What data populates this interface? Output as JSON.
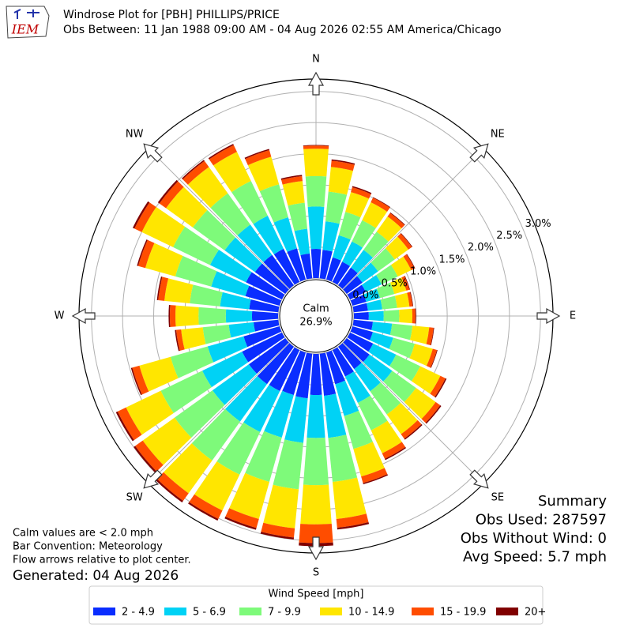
{
  "chart_data": {
    "type": "windrose",
    "logo_text": "IEM",
    "title": "Windrose Plot for [PBH] PHILLIPS/PRICE",
    "subtitle": "Obs Between: 11 Jan 1988 09:00 AM - 04 Aug 2026 02:55 AM America/Chicago",
    "calm_label": "Calm",
    "calm_value_label": "26.9%",
    "x": [
      10,
      20,
      30,
      40,
      50,
      60,
      70,
      80,
      90,
      100,
      110,
      120,
      130,
      140,
      150,
      160,
      170,
      180,
      190,
      200,
      210,
      220,
      230,
      240,
      250,
      260,
      270,
      280,
      290,
      300,
      310,
      320,
      330,
      340,
      350,
      360
    ],
    "xlim": [
      0,
      360
    ],
    "xticks": [
      {
        "value": 0,
        "label": "N"
      },
      {
        "value": 45,
        "label": "NE"
      },
      {
        "value": 90,
        "label": "E"
      },
      {
        "value": 135,
        "label": "SE"
      },
      {
        "value": 180,
        "label": "S"
      },
      {
        "value": 225,
        "label": "SW"
      },
      {
        "value": 270,
        "label": "W"
      },
      {
        "value": 315,
        "label": "NW"
      }
    ],
    "ylim": [
      0,
      3.2
    ],
    "yticks": [
      {
        "value": 0,
        "label": "0.0%"
      },
      {
        "value": 0.5,
        "label": "0.5%"
      },
      {
        "value": 1,
        "label": "1.0%"
      },
      {
        "value": 1.5,
        "label": "1.5%"
      },
      {
        "value": 2,
        "label": "2.0%"
      },
      {
        "value": 2.5,
        "label": "2.5%"
      },
      {
        "value": 3,
        "label": "3.0%"
      }
    ],
    "grid": true,
    "legend_title": "Wind Speed [mph]",
    "series": [
      {
        "name": "2 - 4.9",
        "color": "#0a2dff",
        "values": [
          0.46,
          0.37,
          0.36,
          0.35,
          0.31,
          0.28,
          0.23,
          0.23,
          0.24,
          0.31,
          0.34,
          0.41,
          0.45,
          0.44,
          0.47,
          0.53,
          0.68,
          0.66,
          0.72,
          0.71,
          0.73,
          0.74,
          0.72,
          0.71,
          0.6,
          0.4,
          0.42,
          0.47,
          0.57,
          0.64,
          0.6,
          0.6,
          0.59,
          0.52,
          0.4,
          0.47
        ]
      },
      {
        "name": "5 - 6.9",
        "color": "#00d2f5",
        "values": [
          0.46,
          0.37,
          0.36,
          0.35,
          0.31,
          0.28,
          0.23,
          0.23,
          0.24,
          0.31,
          0.34,
          0.41,
          0.45,
          0.44,
          0.47,
          0.53,
          0.68,
          0.69,
          0.72,
          0.71,
          0.73,
          0.74,
          0.72,
          0.71,
          0.6,
          0.4,
          0.42,
          0.47,
          0.57,
          0.64,
          0.6,
          0.6,
          0.59,
          0.52,
          0.4,
          0.68
        ]
      },
      {
        "name": "7 - 9.9",
        "color": "#7efa7a",
        "values": [
          0.48,
          0.39,
          0.38,
          0.36,
          0.33,
          0.29,
          0.24,
          0.24,
          0.25,
          0.33,
          0.36,
          0.43,
          0.47,
          0.46,
          0.49,
          0.55,
          0.71,
          0.76,
          0.75,
          0.74,
          0.76,
          0.77,
          0.75,
          0.74,
          0.62,
          0.42,
          0.44,
          0.49,
          0.6,
          0.66,
          0.63,
          0.62,
          0.62,
          0.55,
          0.42,
          0.49
        ]
      },
      {
        "name": "10 - 14.9",
        "color": "#ffe600",
        "values": [
          0.4,
          0.33,
          0.32,
          0.3,
          0.27,
          0.24,
          0.2,
          0.2,
          0.21,
          0.27,
          0.3,
          0.36,
          0.39,
          0.39,
          0.41,
          0.46,
          0.6,
          0.63,
          0.63,
          0.62,
          0.64,
          0.65,
          0.63,
          0.62,
          0.52,
          0.35,
          0.37,
          0.41,
          0.5,
          0.56,
          0.53,
          0.52,
          0.52,
          0.46,
          0.35,
          0.44
        ]
      },
      {
        "name": "15 - 19.9",
        "color": "#ff4d00",
        "values": [
          0.1,
          0.08,
          0.08,
          0.07,
          0.07,
          0.06,
          0.05,
          0.05,
          0.05,
          0.07,
          0.07,
          0.09,
          0.09,
          0.09,
          0.1,
          0.11,
          0.14,
          0.3,
          0.15,
          0.15,
          0.15,
          0.15,
          0.15,
          0.15,
          0.12,
          0.08,
          0.09,
          0.1,
          0.12,
          0.13,
          0.13,
          0.12,
          0.12,
          0.11,
          0.08,
          0.05
        ]
      },
      {
        "name": "20+",
        "color": "#800000",
        "values": [
          0.02,
          0.02,
          0.01,
          0.01,
          0.01,
          0.01,
          0.01,
          0.01,
          0.01,
          0.01,
          0.01,
          0.02,
          0.02,
          0.02,
          0.02,
          0.02,
          0.03,
          0.05,
          0.03,
          0.03,
          0.03,
          0.03,
          0.03,
          0.03,
          0.02,
          0.02,
          0.02,
          0.02,
          0.02,
          0.03,
          0.03,
          0.02,
          0.02,
          0.02,
          0.02,
          0.01
        ]
      }
    ],
    "notes": [
      "Calm values are < 2.0 mph",
      "Bar Convention: Meteorology",
      "Flow arrows relative to plot center."
    ],
    "generated": "Generated: 04 Aug 2026",
    "summary": [
      "Summary",
      "Obs Used: 287597",
      "Obs Without Wind: 0",
      "Avg Speed: 5.7 mph"
    ]
  }
}
